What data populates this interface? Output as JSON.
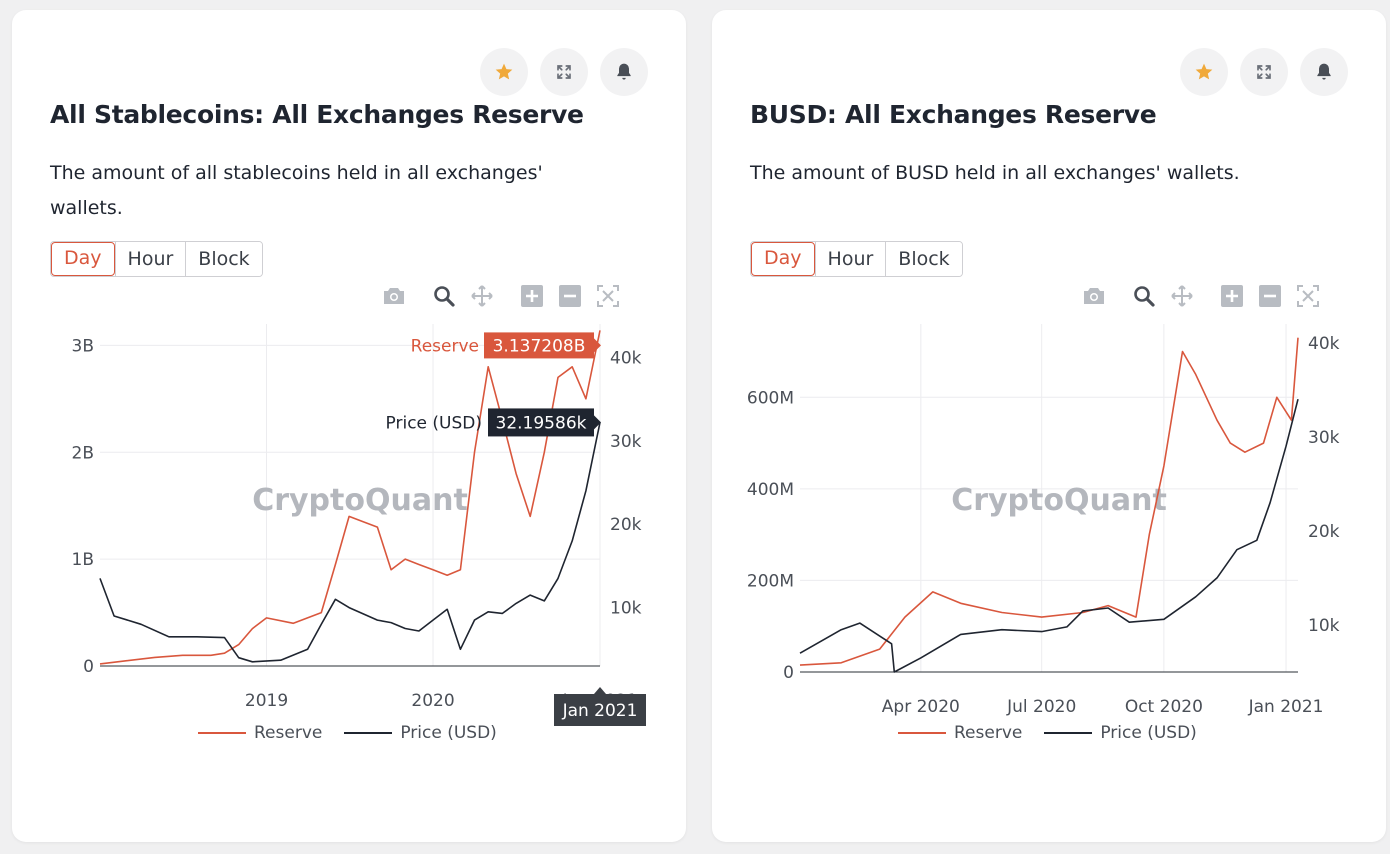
{
  "colors": {
    "reserve": "#d9573d",
    "price": "#1f2530",
    "accent": "#d9573d",
    "star": "#f0a93a"
  },
  "icons": {
    "favorite": "star-icon",
    "expand": "expand-icon",
    "alert": "bell-icon"
  },
  "watermark": "CryptoQuant",
  "legend": {
    "reserve": "Reserve",
    "price": "Price (USD)"
  },
  "resolution_options": [
    "Day",
    "Hour",
    "Block"
  ],
  "selected_resolution": "Day",
  "modebar_icons": [
    "camera-icon",
    "zoom-icon",
    "pan-icon",
    "zoom-in-icon",
    "zoom-out-icon",
    "autoscale-icon"
  ],
  "cards": [
    {
      "title": "All Stablecoins: All Exchanges Reserve",
      "description": "The amount of all stablecoins held in all exchanges' wallets.",
      "hover": {
        "reserve_label": "Reserve",
        "reserve_value": "3.137208B",
        "price_label": "Price (USD)",
        "price_value": "32.19586k",
        "date_label": "Jan 2021"
      }
    },
    {
      "title": "BUSD: All Exchanges Reserve",
      "description": "The amount of BUSD held in all exchanges' wallets."
    }
  ],
  "chart_data": [
    {
      "type": "line",
      "title": "All Stablecoins: All Exchanges Reserve",
      "x_ticks": [
        "2019",
        "2020",
        "Jan 2021"
      ],
      "x_range": [
        "2018-01",
        "2021-01"
      ],
      "y_left": {
        "ticks": [
          "0",
          "1B",
          "2B",
          "3B"
        ],
        "range": [
          0,
          3.2
        ]
      },
      "y_right": {
        "ticks": [
          "10k",
          "20k",
          "30k",
          "40k"
        ],
        "range": [
          3,
          44
        ]
      },
      "series": [
        {
          "name": "Reserve",
          "axis": "left",
          "x": [
            "2018-01",
            "2018-03",
            "2018-05",
            "2018-07",
            "2018-09",
            "2018-10",
            "2018-11",
            "2018-12",
            "2019-01",
            "2019-03",
            "2019-05",
            "2019-06",
            "2019-07",
            "2019-08",
            "2019-09",
            "2019-10",
            "2019-11",
            "2019-12",
            "2020-01",
            "2020-02",
            "2020-03",
            "2020-04",
            "2020-05",
            "2020-06",
            "2020-07",
            "2020-08",
            "2020-09",
            "2020-10",
            "2020-11",
            "2020-12",
            "2021-01"
          ],
          "values": [
            0.02,
            0.05,
            0.08,
            0.1,
            0.1,
            0.12,
            0.2,
            0.35,
            0.45,
            0.4,
            0.5,
            0.95,
            1.4,
            1.35,
            1.3,
            0.9,
            1.0,
            0.95,
            0.9,
            0.85,
            0.9,
            2.0,
            2.8,
            2.3,
            1.8,
            1.4,
            2.0,
            2.7,
            2.8,
            2.5,
            3.14
          ]
        },
        {
          "name": "Price (USD)",
          "axis": "right",
          "x": [
            "2018-01",
            "2018-02",
            "2018-04",
            "2018-06",
            "2018-08",
            "2018-10",
            "2018-11",
            "2018-12",
            "2019-02",
            "2019-04",
            "2019-05",
            "2019-06",
            "2019-07",
            "2019-09",
            "2019-10",
            "2019-11",
            "2019-12",
            "2020-01",
            "2020-02",
            "2020-03",
            "2020-04",
            "2020-05",
            "2020-06",
            "2020-07",
            "2020-08",
            "2020-09",
            "2020-10",
            "2020-11",
            "2020-12",
            "2021-01"
          ],
          "values": [
            13.5,
            9,
            8,
            6.5,
            6.5,
            6.4,
            4,
            3.5,
            3.7,
            5,
            8,
            11,
            10,
            8.5,
            8.2,
            7.5,
            7.2,
            8.5,
            9.8,
            5,
            8.5,
            9.5,
            9.3,
            10.5,
            11.5,
            10.8,
            13.5,
            18,
            24,
            32.2
          ]
        }
      ]
    },
    {
      "type": "line",
      "title": "BUSD: All Exchanges Reserve",
      "x_ticks": [
        "Apr 2020",
        "Jul 2020",
        "Oct 2020",
        "Jan 2021"
      ],
      "x_range": [
        "2020-01-01",
        "2021-01-10"
      ],
      "y_left": {
        "ticks": [
          "0",
          "200M",
          "400M",
          "600M"
        ],
        "range": [
          0,
          760
        ]
      },
      "y_right": {
        "ticks": [
          "10k",
          "20k",
          "30k",
          "40k"
        ],
        "range": [
          5,
          42
        ]
      },
      "series": [
        {
          "name": "Reserve",
          "axis": "left",
          "x": [
            "2020-01-01",
            "2020-02-01",
            "2020-03-01",
            "2020-03-20",
            "2020-04-10",
            "2020-05-01",
            "2020-06-01",
            "2020-07-01",
            "2020-08-01",
            "2020-08-20",
            "2020-09-10",
            "2020-09-20",
            "2020-10-01",
            "2020-10-15",
            "2020-10-25",
            "2020-11-10",
            "2020-11-20",
            "2020-12-01",
            "2020-12-15",
            "2020-12-25",
            "2021-01-05",
            "2021-01-10"
          ],
          "values": [
            15,
            20,
            50,
            120,
            175,
            150,
            130,
            120,
            130,
            145,
            120,
            300,
            450,
            700,
            650,
            550,
            500,
            480,
            500,
            600,
            550,
            730
          ]
        },
        {
          "name": "Price (USD)",
          "axis": "right",
          "x": [
            "2020-01-01",
            "2020-02-01",
            "2020-02-15",
            "2020-03-10",
            "2020-03-12",
            "2020-04-01",
            "2020-05-01",
            "2020-06-01",
            "2020-07-01",
            "2020-07-20",
            "2020-08-01",
            "2020-08-20",
            "2020-09-05",
            "2020-10-01",
            "2020-10-25",
            "2020-11-10",
            "2020-11-25",
            "2020-12-10",
            "2020-12-20",
            "2021-01-01",
            "2021-01-10"
          ],
          "values": [
            7,
            9.5,
            10.2,
            8,
            5,
            6.5,
            9,
            9.5,
            9.3,
            9.8,
            11.5,
            11.8,
            10.3,
            10.6,
            13,
            15,
            18,
            19,
            23,
            29,
            34
          ]
        }
      ]
    }
  ]
}
